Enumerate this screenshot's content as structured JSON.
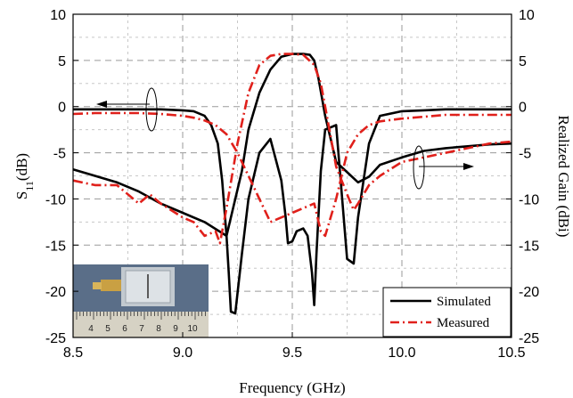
{
  "chart_data": {
    "type": "line",
    "xlabel": "Frequency (GHz)",
    "ylabel_left": {
      "main": "S",
      "sub": "11",
      "unit": "(dB)"
    },
    "ylabel_right": "Realized Gain (dBi)",
    "xlim": [
      8.5,
      10.5
    ],
    "ylim_left": [
      -25,
      10
    ],
    "ylim_right": [
      -25,
      10
    ],
    "x_ticks": [
      "8.5",
      "9.0",
      "9.5",
      "10.0",
      "10.5"
    ],
    "y_ticks_left": [
      "10",
      "5",
      "0",
      "-5",
      "-10",
      "-15",
      "-20",
      "-25"
    ],
    "y_ticks_right": [
      "10",
      "5",
      "0",
      "-5",
      "-10",
      "-15",
      "-20",
      "-25"
    ],
    "grid": true,
    "legend": {
      "position": "bottom-right",
      "entries": [
        {
          "label": "Simulated",
          "color": "#000000",
          "style": "solid"
        },
        {
          "label": "Measured",
          "color": "#e0201b",
          "style": "dash-dot"
        }
      ]
    },
    "inset_photo": {
      "position": "bottom-left",
      "ruler_labels": [
        "4",
        "5",
        "6",
        "7",
        "8",
        "9",
        "10"
      ]
    },
    "series": [
      {
        "name": "Simulated",
        "quantity": "S11",
        "axis": "left",
        "color": "#000000",
        "style": "solid",
        "x": [
          8.5,
          8.6,
          8.7,
          8.8,
          8.9,
          9.0,
          9.05,
          9.1,
          9.13,
          9.16,
          9.18,
          9.2,
          9.21,
          9.22,
          9.24,
          9.27,
          9.3,
          9.35,
          9.4,
          9.45,
          9.47,
          9.48,
          9.5,
          9.52,
          9.55,
          9.57,
          9.59,
          9.6,
          9.61,
          9.63,
          9.65,
          9.7,
          9.75,
          9.78,
          9.8,
          9.85,
          9.9,
          10.0,
          10.1,
          10.2,
          10.3,
          10.4,
          10.5
        ],
        "y": [
          -0.3,
          -0.3,
          -0.3,
          -0.3,
          -0.3,
          -0.4,
          -0.5,
          -1.0,
          -2.0,
          -4.0,
          -8.0,
          -14.0,
          -18.0,
          -22.2,
          -22.4,
          -16.0,
          -10.0,
          -5.0,
          -3.5,
          -8.0,
          -12.0,
          -14.8,
          -14.6,
          -13.5,
          -13.2,
          -14.0,
          -18.0,
          -21.5,
          -16.0,
          -7.0,
          -2.5,
          -2.0,
          -16.5,
          -17.0,
          -12.0,
          -4.0,
          -1.0,
          -0.5,
          -0.4,
          -0.3,
          -0.3,
          -0.3,
          -0.3
        ]
      },
      {
        "name": "Simulated",
        "quantity": "Realized Gain",
        "axis": "right",
        "color": "#000000",
        "style": "solid",
        "x": [
          8.5,
          8.6,
          8.7,
          8.8,
          8.9,
          9.0,
          9.1,
          9.2,
          9.27,
          9.3,
          9.35,
          9.4,
          9.45,
          9.5,
          9.55,
          9.58,
          9.6,
          9.62,
          9.65,
          9.7,
          9.8,
          9.85,
          9.9,
          10.0,
          10.1,
          10.2,
          10.3,
          10.4,
          10.5
        ],
        "y": [
          -6.8,
          -7.5,
          -8.2,
          -9.2,
          -10.5,
          -11.5,
          -12.5,
          -14.0,
          -7.0,
          -2.5,
          1.5,
          4.0,
          5.4,
          5.7,
          5.7,
          5.6,
          5.0,
          3.0,
          -1.0,
          -6.0,
          -8.2,
          -7.6,
          -6.3,
          -5.5,
          -4.8,
          -4.5,
          -4.3,
          -4.1,
          -4.0
        ]
      },
      {
        "name": "Measured",
        "quantity": "S11",
        "axis": "left",
        "color": "#e0201b",
        "style": "dash-dot",
        "x": [
          8.5,
          8.6,
          8.7,
          8.8,
          8.9,
          9.0,
          9.05,
          9.1,
          9.15,
          9.2,
          9.25,
          9.3,
          9.35,
          9.4,
          9.45,
          9.5,
          9.55,
          9.6,
          9.63,
          9.65,
          9.7,
          9.75,
          9.8,
          9.85,
          9.9,
          10.0,
          10.1,
          10.2,
          10.3,
          10.4,
          10.5
        ],
        "y": [
          -0.8,
          -0.7,
          -0.7,
          -0.7,
          -0.8,
          -1.0,
          -1.2,
          -1.5,
          -2.0,
          -3.0,
          -5.0,
          -7.5,
          -10.0,
          -12.5,
          -12.0,
          -11.5,
          -11.0,
          -10.5,
          -13.5,
          -14.0,
          -10.0,
          -5.0,
          -3.0,
          -2.0,
          -1.6,
          -1.3,
          -1.1,
          -0.9,
          -0.9,
          -0.9,
          -0.9
        ]
      },
      {
        "name": "Measured",
        "quantity": "Realized Gain",
        "axis": "right",
        "color": "#e0201b",
        "style": "dash-dot",
        "x": [
          8.5,
          8.6,
          8.7,
          8.8,
          8.85,
          8.9,
          9.0,
          9.05,
          9.1,
          9.15,
          9.17,
          9.2,
          9.25,
          9.3,
          9.35,
          9.4,
          9.45,
          9.5,
          9.55,
          9.6,
          9.63,
          9.65,
          9.7,
          9.75,
          9.78,
          9.8,
          9.85,
          9.9,
          10.0,
          10.1,
          10.2,
          10.3,
          10.4,
          10.5
        ],
        "y": [
          -8.0,
          -8.5,
          -8.5,
          -10.5,
          -9.5,
          -10.5,
          -12.0,
          -12.5,
          -14.0,
          -13.5,
          -14.8,
          -11.0,
          -4.0,
          1.5,
          4.5,
          5.5,
          5.7,
          5.7,
          5.6,
          4.5,
          2.5,
          0.0,
          -6.5,
          -9.5,
          -11.2,
          -10.5,
          -8.5,
          -7.5,
          -6.0,
          -5.5,
          -5.0,
          -4.5,
          -4.0,
          -3.8
        ]
      }
    ]
  }
}
